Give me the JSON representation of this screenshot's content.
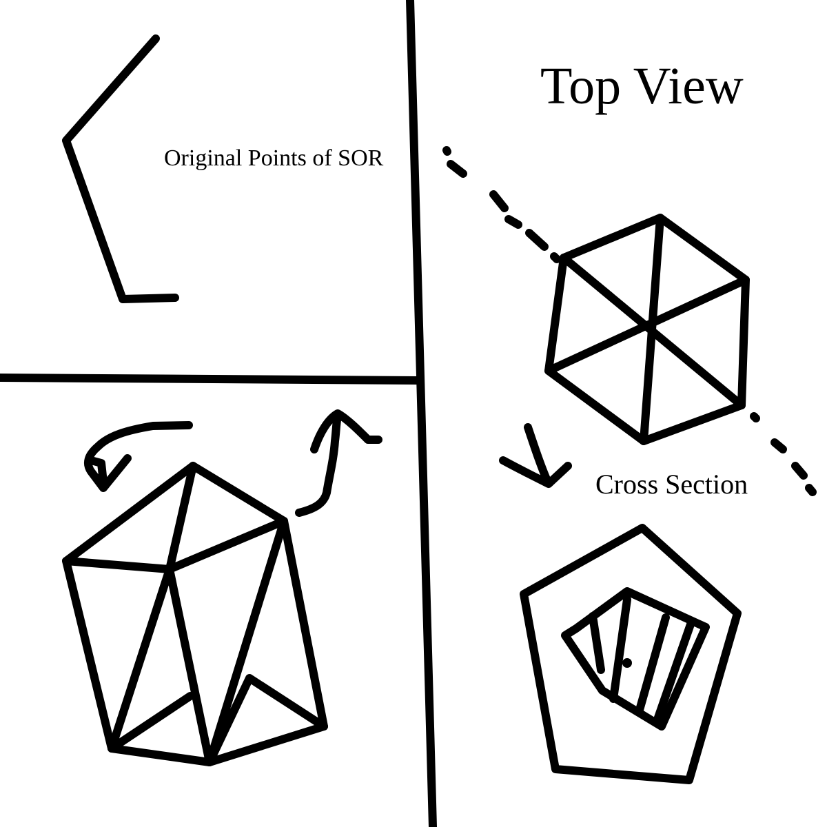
{
  "labels": {
    "original_points": "Original Points of SOR",
    "top_view": "Top View",
    "cross_section": "Cross Section"
  },
  "colors": {
    "ink": "#000000",
    "background": "#ffffff"
  }
}
